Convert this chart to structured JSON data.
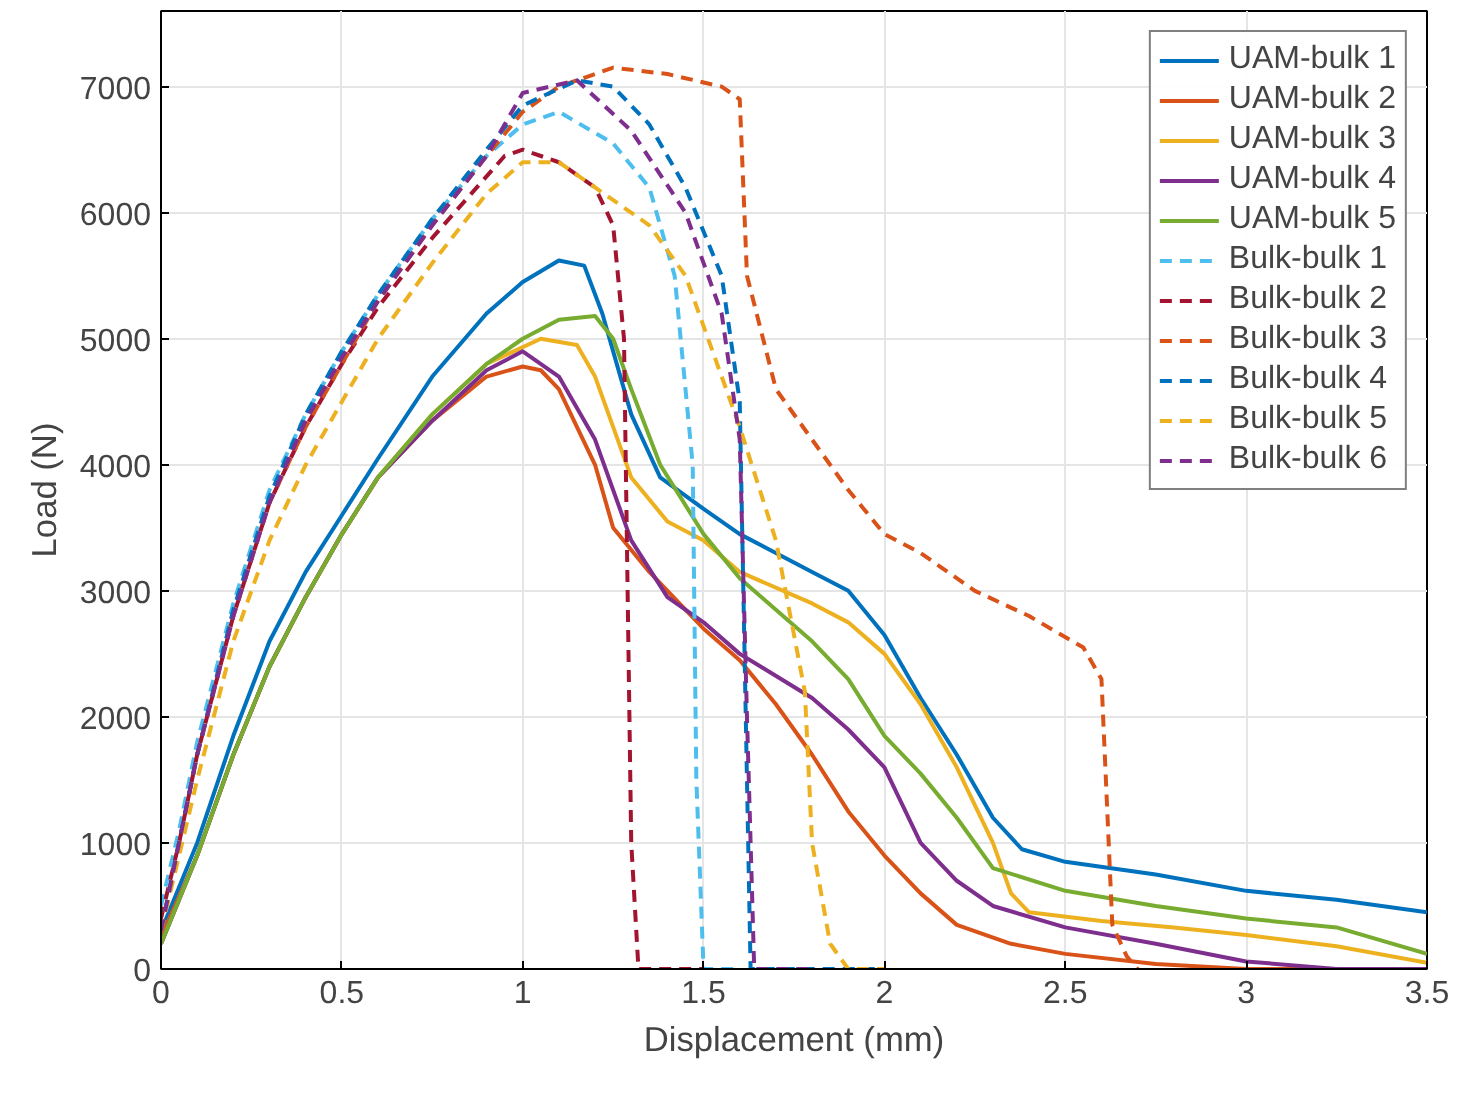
{
  "chart_data": {
    "type": "line",
    "xlabel": "Displacement (mm)",
    "ylabel": "Load (N)",
    "xlim": [
      0,
      3.5
    ],
    "ylim": [
      0,
      7600
    ],
    "xticks": [
      0,
      0.5,
      1,
      1.5,
      2,
      2.5,
      3,
      3.5
    ],
    "yticks": [
      0,
      1000,
      2000,
      3000,
      4000,
      5000,
      6000,
      7000
    ],
    "grid": true,
    "legend": "top right",
    "marker": "none",
    "series": [
      {
        "name": "UAM-bulk 1",
        "color": "#0072bd",
        "line_style": "solid",
        "x": [
          0,
          0.1,
          0.2,
          0.3,
          0.4,
          0.5,
          0.6,
          0.75,
          0.9,
          1.0,
          1.1,
          1.17,
          1.22,
          1.3,
          1.38,
          1.5,
          1.6,
          1.8,
          1.9,
          2.0,
          2.1,
          2.2,
          2.3,
          2.38,
          2.5,
          2.75,
          3.0,
          3.25,
          3.5
        ],
        "values": [
          300,
          1000,
          1850,
          2600,
          3150,
          3600,
          4050,
          4700,
          5200,
          5450,
          5620,
          5580,
          5200,
          4400,
          3900,
          3650,
          3450,
          3150,
          3000,
          2650,
          2150,
          1700,
          1200,
          950,
          850,
          750,
          620,
          550,
          450
        ]
      },
      {
        "name": "UAM-bulk 2",
        "color": "#d95319",
        "line_style": "solid",
        "x": [
          0,
          0.1,
          0.2,
          0.3,
          0.4,
          0.5,
          0.6,
          0.75,
          0.9,
          1.0,
          1.05,
          1.1,
          1.2,
          1.25,
          1.35,
          1.5,
          1.6,
          1.7,
          1.8,
          1.9,
          2.0,
          2.1,
          2.2,
          2.35,
          2.5,
          2.75,
          3.0,
          3.5
        ],
        "values": [
          250,
          900,
          1700,
          2400,
          2950,
          3450,
          3900,
          4350,
          4700,
          4780,
          4750,
          4600,
          4000,
          3500,
          3150,
          2700,
          2450,
          2100,
          1700,
          1250,
          900,
          600,
          350,
          200,
          120,
          40,
          0,
          0
        ]
      },
      {
        "name": "UAM-bulk 3",
        "color": "#edb120",
        "line_style": "solid",
        "x": [
          0,
          0.1,
          0.2,
          0.3,
          0.4,
          0.5,
          0.6,
          0.75,
          0.9,
          1.05,
          1.15,
          1.2,
          1.3,
          1.4,
          1.5,
          1.6,
          1.8,
          1.9,
          2.0,
          2.1,
          2.2,
          2.3,
          2.35,
          2.4,
          2.6,
          2.8,
          3.0,
          3.25,
          3.5
        ],
        "values": [
          200,
          900,
          1700,
          2400,
          2950,
          3450,
          3900,
          4400,
          4800,
          5000,
          4950,
          4700,
          3900,
          3550,
          3400,
          3150,
          2900,
          2750,
          2500,
          2100,
          1600,
          1000,
          600,
          450,
          380,
          330,
          270,
          180,
          50
        ]
      },
      {
        "name": "UAM-bulk 4",
        "color": "#7e2f8e",
        "line_style": "solid",
        "x": [
          0,
          0.1,
          0.2,
          0.3,
          0.4,
          0.5,
          0.6,
          0.75,
          0.9,
          1.0,
          1.1,
          1.2,
          1.3,
          1.4,
          1.5,
          1.6,
          1.8,
          1.9,
          2.0,
          2.05,
          2.1,
          2.2,
          2.3,
          2.5,
          2.75,
          3.0,
          3.25,
          3.5
        ],
        "values": [
          200,
          900,
          1700,
          2400,
          2950,
          3450,
          3900,
          4350,
          4750,
          4900,
          4700,
          4200,
          3400,
          2950,
          2750,
          2500,
          2150,
          1900,
          1600,
          1300,
          1000,
          700,
          500,
          330,
          200,
          60,
          0,
          0
        ]
      },
      {
        "name": "UAM-bulk 5",
        "color": "#77ac30",
        "line_style": "solid",
        "x": [
          0,
          0.1,
          0.2,
          0.3,
          0.4,
          0.5,
          0.6,
          0.75,
          0.9,
          1.0,
          1.1,
          1.2,
          1.25,
          1.3,
          1.38,
          1.5,
          1.6,
          1.8,
          1.9,
          2.0,
          2.1,
          2.2,
          2.3,
          2.5,
          2.75,
          3.0,
          3.25,
          3.5
        ],
        "values": [
          200,
          900,
          1700,
          2400,
          2950,
          3450,
          3900,
          4400,
          4800,
          5000,
          5150,
          5180,
          5000,
          4600,
          4000,
          3450,
          3100,
          2600,
          2300,
          1850,
          1550,
          1200,
          800,
          620,
          500,
          400,
          330,
          120
        ]
      },
      {
        "name": "Bulk-bulk 1",
        "color": "#4dbeee",
        "line_style": "dashed",
        "x": [
          0,
          0.05,
          0.1,
          0.2,
          0.3,
          0.4,
          0.5,
          0.6,
          0.75,
          0.9,
          1.0,
          1.1,
          1.25,
          1.35,
          1.42,
          1.47,
          1.48,
          1.5,
          1.6
        ],
        "values": [
          500,
          1100,
          1800,
          2900,
          3800,
          4400,
          4900,
          5350,
          5950,
          6450,
          6700,
          6800,
          6550,
          6200,
          5500,
          4000,
          1500,
          0,
          0
        ]
      },
      {
        "name": "Bulk-bulk 2",
        "color": "#a2142f",
        "line_style": "dashed",
        "x": [
          0,
          0.05,
          0.1,
          0.2,
          0.3,
          0.4,
          0.5,
          0.6,
          0.75,
          0.95,
          1.0,
          1.1,
          1.2,
          1.25,
          1.28,
          1.29,
          1.3,
          1.32,
          1.5
        ],
        "values": [
          400,
          1000,
          1700,
          2800,
          3700,
          4300,
          4800,
          5250,
          5800,
          6450,
          6500,
          6400,
          6200,
          5900,
          5000,
          3000,
          1000,
          0,
          0
        ]
      },
      {
        "name": "Bulk-bulk 3",
        "color": "#d95319",
        "line_style": "dashed",
        "x": [
          0,
          0.05,
          0.1,
          0.2,
          0.3,
          0.4,
          0.5,
          0.6,
          0.75,
          0.9,
          1.0,
          1.1,
          1.25,
          1.4,
          1.55,
          1.6,
          1.62,
          1.7,
          1.8,
          1.9,
          2.0,
          2.1,
          2.25,
          2.4,
          2.55,
          2.6,
          2.62,
          2.63,
          2.67,
          2.7
        ],
        "values": [
          300,
          1000,
          1700,
          2800,
          3700,
          4300,
          4800,
          5300,
          5900,
          6450,
          6800,
          7000,
          7150,
          7100,
          7000,
          6900,
          5500,
          4600,
          4200,
          3800,
          3450,
          3300,
          3000,
          2800,
          2550,
          2300,
          1000,
          350,
          100,
          0
        ]
      },
      {
        "name": "Bulk-bulk 4",
        "color": "#0072bd",
        "line_style": "dashed",
        "x": [
          0,
          0.05,
          0.1,
          0.2,
          0.3,
          0.4,
          0.5,
          0.6,
          0.75,
          0.9,
          1.0,
          1.15,
          1.25,
          1.35,
          1.45,
          1.55,
          1.6,
          1.62,
          1.63,
          2.0
        ],
        "values": [
          300,
          1000,
          1700,
          2850,
          3750,
          4400,
          4900,
          5350,
          5950,
          6500,
          6850,
          7050,
          7000,
          6700,
          6200,
          5500,
          4500,
          1500,
          0,
          0
        ]
      },
      {
        "name": "Bulk-bulk 5",
        "color": "#edb120",
        "line_style": "dashed",
        "x": [
          0,
          0.05,
          0.1,
          0.2,
          0.3,
          0.4,
          0.5,
          0.6,
          0.75,
          0.9,
          1.0,
          1.1,
          1.2,
          1.35,
          1.45,
          1.6,
          1.7,
          1.78,
          1.8,
          1.85,
          1.9,
          2.0
        ],
        "values": [
          300,
          900,
          1500,
          2600,
          3400,
          4000,
          4500,
          5000,
          5600,
          6150,
          6400,
          6400,
          6200,
          5900,
          5500,
          4300,
          3400,
          2200,
          1000,
          200,
          0,
          0
        ]
      },
      {
        "name": "Bulk-bulk 6",
        "color": "#7e2f8e",
        "line_style": "dashed",
        "x": [
          0,
          0.05,
          0.1,
          0.2,
          0.3,
          0.4,
          0.5,
          0.6,
          0.75,
          0.9,
          1.0,
          1.15,
          1.3,
          1.45,
          1.55,
          1.6,
          1.62,
          1.64,
          1.8
        ],
        "values": [
          300,
          1000,
          1700,
          2800,
          3700,
          4350,
          4850,
          5300,
          5900,
          6450,
          6950,
          7050,
          6650,
          6000,
          5200,
          4200,
          2000,
          0,
          0
        ]
      }
    ]
  }
}
